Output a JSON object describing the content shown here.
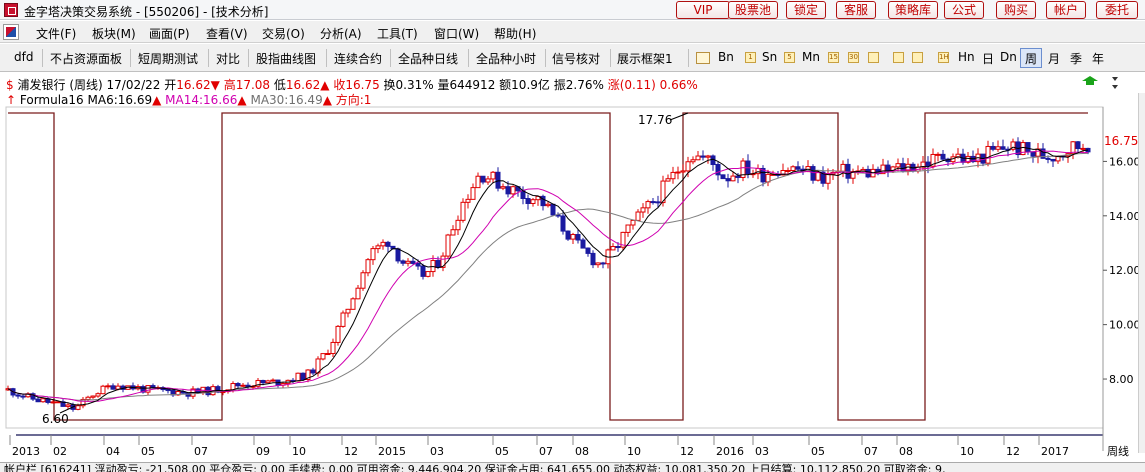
{
  "window": {
    "title": "金字塔决策交易系统 - [550206] - [技术分析]"
  },
  "top_buttons": [
    "VIP",
    "股票池",
    "锁定",
    "客服",
    "策略库",
    "公式",
    "购买",
    "帐户",
    "委托"
  ],
  "menu": [
    "文件(F)",
    "板块(M)",
    "画面(P)",
    "查看(V)",
    "交易(O)",
    "分析(A)",
    "工具(T)",
    "窗口(W)",
    "帮助(H)"
  ],
  "toolbar": {
    "buttons": [
      "dfd",
      "不占资源面板",
      "短周期测试",
      "对比",
      "股指曲线图",
      "连续合约",
      "全品种日线",
      "全品种小时",
      "信号核对",
      "展示框架1"
    ],
    "period_boxes": [
      "1",
      "5",
      "15",
      "30",
      "1H"
    ],
    "periods": [
      "Bn",
      "Sn",
      "Mn",
      "Hn",
      "日",
      "Dn",
      "周",
      "月",
      "季",
      "年"
    ],
    "active_period": "周"
  },
  "header": {
    "name": "浦发银行",
    "period": "(周线)",
    "date": "17/02/22",
    "open_label": "开",
    "open": "16.62",
    "high_label": "高",
    "high": "17.08",
    "low_label": "低",
    "low": "16.62",
    "close_label": "收",
    "close": "16.75",
    "turnover_label": "换",
    "turnover": "0.31%",
    "volume_label": "量",
    "volume": "644912",
    "amount_label": "额",
    "amount": "10.9亿",
    "amplitude_label": "振",
    "amplitude": "2.76%",
    "change_label": "涨",
    "change": "(0.11)",
    "change_pct": "0.66%",
    "formula": "Formula16",
    "ma6": "MA6:16.69",
    "ma14": "MA14:16.66",
    "ma30": "MA30:16.49",
    "direction": "方向:1"
  },
  "chart_data": {
    "type": "candlestick",
    "y_ticks": [
      "8.00",
      "10.00",
      "12.00",
      "14.00",
      "16.00"
    ],
    "ylim": [
      6.2,
      18.0
    ],
    "x_labels": [
      "2013",
      "02",
      "04",
      "05",
      "07",
      "09",
      "10",
      "12",
      "2015",
      "03",
      "05",
      "07",
      "08",
      "10",
      "12",
      "2016",
      "03",
      "05",
      "07",
      "08",
      "10",
      "12",
      "2017"
    ],
    "period_label": "周线",
    "last_price": "16.75",
    "high_annotation": "17.76",
    "low_annotation": "6.60",
    "colors": {
      "up": "#e00000",
      "down": "#1a1aa0",
      "ma6": "#000000",
      "ma14": "#d000b0",
      "ma30": "#808080",
      "signal": "#7a1c1c"
    }
  },
  "status": {
    "text": "帐户栏 [616241]  浮动盈亏: -21,508.00    平仓盈亏: 0.00    手续费: 0.00    可用资金: 9,446,904.20    保证金占用: 641,655.00    动态权益: 10,081,350.20    上日结算: 10,112,850.20    可取资金: 9,"
  }
}
